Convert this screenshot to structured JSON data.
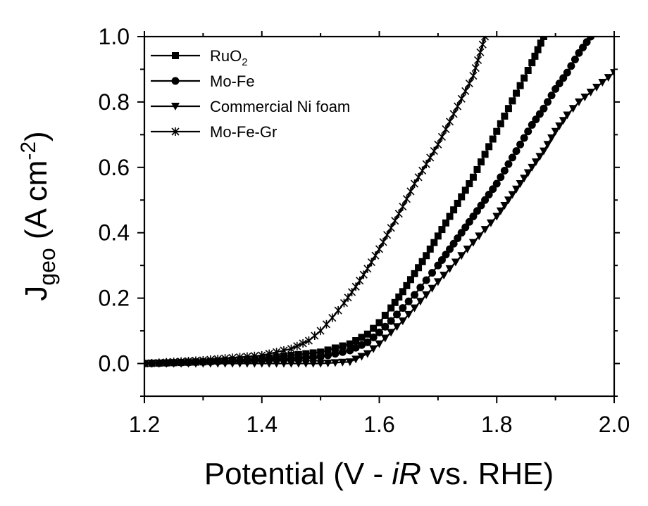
{
  "chart_data": {
    "type": "line",
    "title": "",
    "xlabel": {
      "prefix": "Potential (V - ",
      "italic1": "i",
      "italic2": "R",
      "suffix": " vs. RHE)"
    },
    "ylabel": {
      "main": "J",
      "sub": "geo",
      "unit_open": " (A cm",
      "unit_sup": "-2",
      "unit_close": ")"
    },
    "xlim": [
      1.2,
      2.0
    ],
    "ylim": [
      -0.1,
      1.0
    ],
    "x_ticks": [
      1.2,
      1.4,
      1.6,
      1.8,
      2.0
    ],
    "x_tick_labels": [
      "1.2",
      "1.4",
      "1.6",
      "1.8",
      "2.0"
    ],
    "y_ticks": [
      0.0,
      0.2,
      0.4,
      0.6,
      0.8,
      1.0
    ],
    "y_tick_labels": [
      "0.0",
      "0.2",
      "0.4",
      "0.6",
      "0.8",
      "1.0"
    ],
    "grid": false,
    "legend_position": "top-left",
    "series": [
      {
        "name": "RuO2",
        "label_main": "RuO",
        "label_sub": "2",
        "label_rest": "",
        "marker": "square",
        "x": [
          1.2,
          1.3,
          1.4,
          1.5,
          1.55,
          1.58,
          1.6,
          1.62,
          1.64,
          1.66,
          1.68,
          1.7,
          1.72,
          1.74,
          1.76,
          1.78,
          1.8,
          1.82,
          1.84,
          1.86,
          1.88
        ],
        "y": [
          0.0,
          0.005,
          0.015,
          0.035,
          0.06,
          0.09,
          0.125,
          0.17,
          0.22,
          0.275,
          0.33,
          0.39,
          0.45,
          0.51,
          0.57,
          0.64,
          0.71,
          0.78,
          0.85,
          0.92,
          1.0
        ]
      },
      {
        "name": "Mo-Fe",
        "label_main": "Mo-Fe",
        "label_sub": "",
        "label_rest": "",
        "marker": "circle",
        "x": [
          1.2,
          1.3,
          1.4,
          1.5,
          1.55,
          1.58,
          1.6,
          1.62,
          1.64,
          1.66,
          1.68,
          1.7,
          1.72,
          1.74,
          1.76,
          1.78,
          1.8,
          1.82,
          1.84,
          1.86,
          1.88,
          1.9,
          1.92,
          1.94,
          1.96
        ],
        "y": [
          0.0,
          0.005,
          0.01,
          0.02,
          0.04,
          0.065,
          0.095,
          0.13,
          0.17,
          0.21,
          0.255,
          0.3,
          0.35,
          0.4,
          0.45,
          0.5,
          0.55,
          0.61,
          0.67,
          0.73,
          0.78,
          0.84,
          0.89,
          0.95,
          1.0
        ]
      },
      {
        "name": "Commercial Ni foam",
        "label_main": "Commercial Ni foam",
        "label_sub": "",
        "label_rest": "",
        "marker": "triangle-down",
        "x": [
          1.2,
          1.3,
          1.4,
          1.5,
          1.55,
          1.58,
          1.6,
          1.62,
          1.64,
          1.66,
          1.68,
          1.7,
          1.72,
          1.74,
          1.76,
          1.78,
          1.8,
          1.82,
          1.84,
          1.86,
          1.88,
          1.9,
          1.92,
          1.94,
          1.96,
          1.98,
          2.0
        ],
        "y": [
          0.0,
          0.0,
          0.0,
          0.0,
          0.005,
          0.03,
          0.06,
          0.095,
          0.13,
          0.17,
          0.21,
          0.25,
          0.29,
          0.33,
          0.37,
          0.41,
          0.45,
          0.5,
          0.55,
          0.6,
          0.65,
          0.71,
          0.76,
          0.8,
          0.83,
          0.86,
          0.89
        ]
      },
      {
        "name": "Mo-Fe-Gr",
        "label_main": " Mo-Fe-Gr",
        "label_sub": "",
        "label_rest": "",
        "marker": "star",
        "x": [
          1.2,
          1.3,
          1.4,
          1.45,
          1.48,
          1.5,
          1.52,
          1.54,
          1.56,
          1.58,
          1.6,
          1.62,
          1.64,
          1.66,
          1.68,
          1.7,
          1.72,
          1.74,
          1.76,
          1.78
        ],
        "y": [
          0.0,
          0.01,
          0.025,
          0.045,
          0.07,
          0.1,
          0.14,
          0.185,
          0.235,
          0.29,
          0.35,
          0.415,
          0.48,
          0.55,
          0.61,
          0.67,
          0.74,
          0.81,
          0.88,
          1.0
        ]
      }
    ]
  }
}
